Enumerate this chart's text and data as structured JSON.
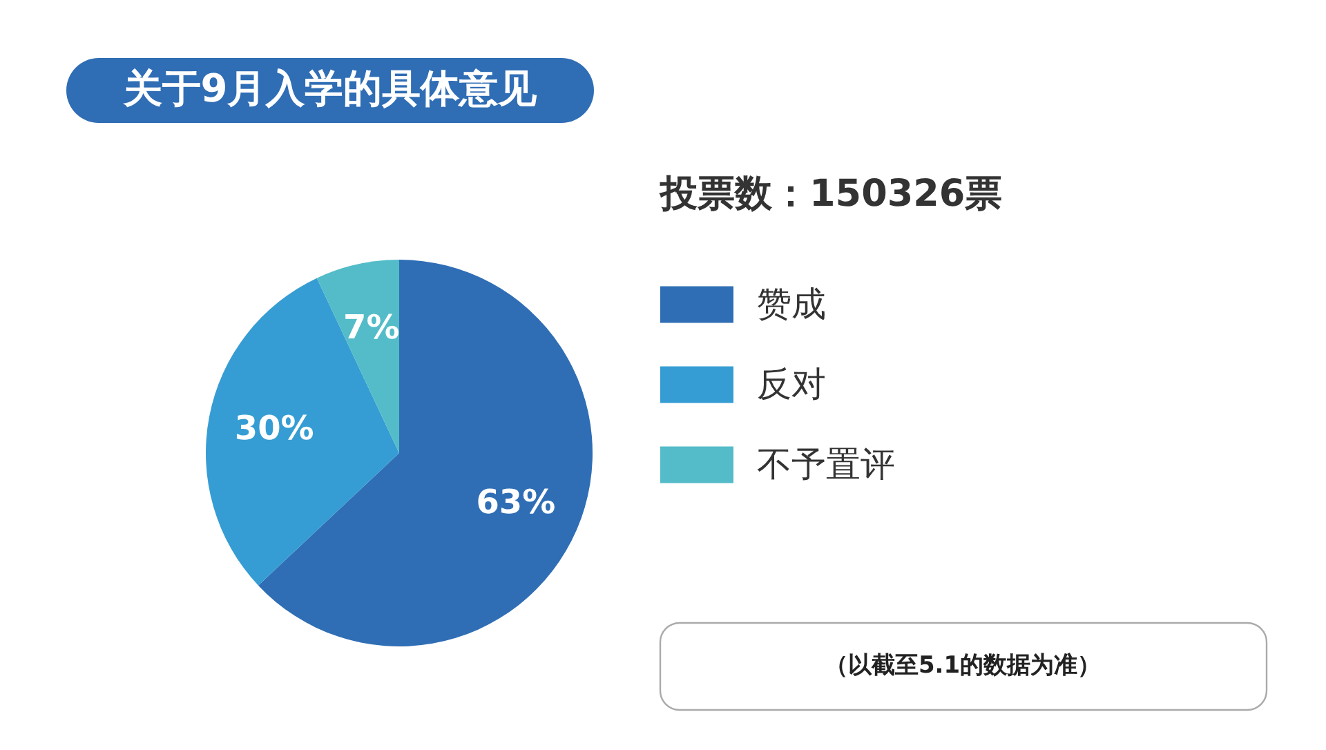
{
  "chart_data": {
    "type": "pie",
    "title": "关于9月入学的具体意见",
    "subtitle": "投票数：150326票",
    "categories": [
      "赞成",
      "反对",
      "不予置评"
    ],
    "values": [
      63,
      30,
      7
    ],
    "colors": [
      "#2f6eb5",
      "#359dd3",
      "#53bcc8"
    ],
    "value_labels": [
      "63%",
      "30%",
      "7%"
    ],
    "legend": "right",
    "annotations": [
      "（以截至5.1的数据为准）"
    ]
  }
}
